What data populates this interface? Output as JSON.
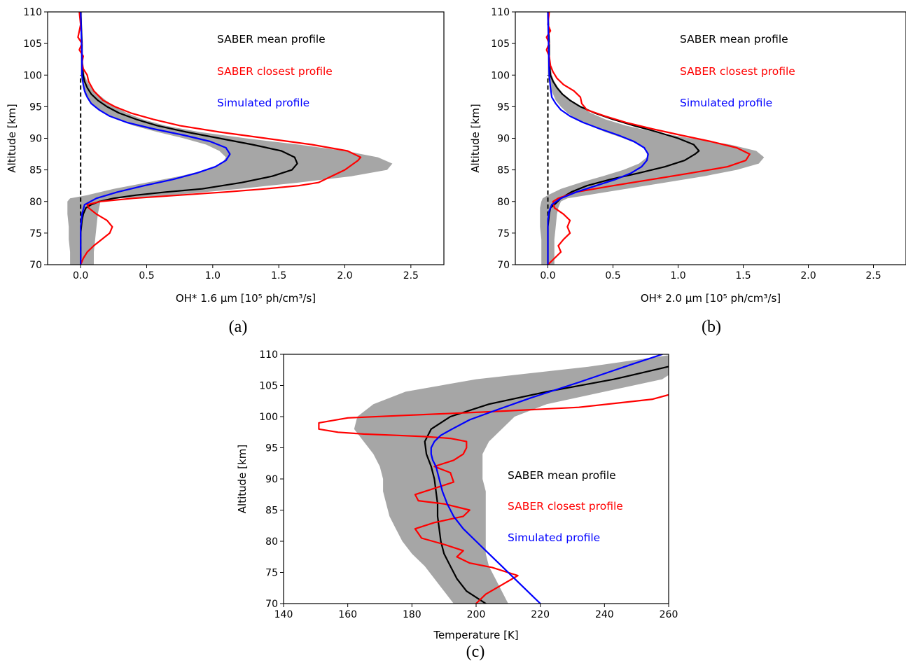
{
  "chart_data": [
    {
      "type": "line",
      "panel_label": "(a)",
      "xlabel": "OH* 1.6 µm [10⁵ ph/cm³/s]",
      "ylabel": "Altitude [km]",
      "xlim": [
        -0.25,
        2.75
      ],
      "ylim": [
        70,
        110
      ],
      "xticks": [
        0.0,
        0.5,
        1.0,
        1.5,
        2.0,
        2.5
      ],
      "xtick_labels": [
        "0.0",
        "0.5",
        "1.0",
        "1.5",
        "2.0",
        "2.5"
      ],
      "yticks": [
        70,
        75,
        80,
        85,
        90,
        95,
        100,
        105,
        110
      ],
      "yticks_labels": [
        "70",
        "75",
        "80",
        "85",
        "90",
        "95",
        "100",
        "105",
        "110"
      ],
      "legend": [
        "SABER mean profile",
        "SABER closest profile",
        "Simulated profile"
      ],
      "zero_line": true,
      "band": {
        "altitude": [
          70,
          72,
          74,
          76,
          78,
          79,
          80,
          80.5,
          81,
          82,
          83,
          84,
          85,
          86,
          87,
          88,
          89,
          90,
          91,
          92,
          93,
          94,
          95,
          96,
          97,
          98,
          99,
          100,
          102,
          104,
          106,
          108,
          110
        ],
        "lower": [
          -0.08,
          -0.08,
          -0.09,
          -0.09,
          -0.1,
          -0.1,
          -0.1,
          -0.08,
          0.05,
          0.25,
          0.5,
          0.75,
          0.95,
          1.07,
          1.1,
          1.05,
          0.95,
          0.78,
          0.58,
          0.4,
          0.27,
          0.17,
          0.1,
          0.06,
          0.03,
          0.02,
          0.01,
          0.0,
          0.0,
          0.0,
          0.0,
          0.0,
          0.0
        ],
        "upper": [
          0.1,
          0.1,
          0.11,
          0.12,
          0.13,
          0.14,
          0.15,
          0.3,
          0.7,
          1.2,
          1.65,
          2.05,
          2.32,
          2.36,
          2.25,
          2.0,
          1.65,
          1.25,
          0.9,
          0.64,
          0.47,
          0.35,
          0.26,
          0.19,
          0.13,
          0.08,
          0.05,
          0.03,
          0.02,
          0.01,
          0.01,
          0.01,
          0.01
        ]
      },
      "series": [
        {
          "name": "SABER mean profile",
          "color": "#000000",
          "x": [
            0.0,
            0.0,
            0.01,
            0.02,
            0.04,
            0.08,
            0.14,
            0.25,
            0.42,
            0.65,
            0.92,
            1.22,
            1.45,
            1.6,
            1.64,
            1.62,
            1.52,
            1.3,
            1.05,
            0.8,
            0.58,
            0.42,
            0.29,
            0.2,
            0.13,
            0.08,
            0.05,
            0.03,
            0.02,
            0.01,
            0.01,
            0.0
          ],
          "y": [
            70,
            75,
            77,
            78,
            79,
            79.5,
            80,
            80.5,
            81,
            81.5,
            82,
            83,
            84,
            85,
            86,
            87,
            88,
            89,
            90,
            91,
            92,
            93,
            94,
            95,
            96,
            97,
            98,
            99,
            100,
            102,
            105,
            110
          ]
        },
        {
          "name": "SABER closest profile",
          "color": "#ff0000",
          "x": [
            0.0,
            0.02,
            0.05,
            0.1,
            0.16,
            0.22,
            0.24,
            0.2,
            0.12,
            0.06,
            0.05,
            0.15,
            0.4,
            0.75,
            1.1,
            1.4,
            1.65,
            1.8,
            2.0,
            2.1,
            2.12,
            2.02,
            1.75,
            1.4,
            1.05,
            0.75,
            0.55,
            0.38,
            0.26,
            0.17,
            0.1,
            0.06,
            0.05,
            0.02,
            0.01,
            0.02,
            -0.01,
            0.01,
            -0.02,
            0.0,
            -0.01
          ],
          "y": [
            70,
            71,
            72,
            73,
            74,
            75,
            76,
            77,
            78,
            79,
            79.5,
            80,
            80.5,
            81,
            81.5,
            82,
            82.5,
            83,
            85,
            86.5,
            87,
            88,
            89,
            90,
            91,
            92,
            93,
            94,
            95,
            96,
            97.5,
            99,
            100,
            101,
            102,
            103,
            104,
            105,
            106,
            108,
            110
          ]
        },
        {
          "name": "Simulated profile",
          "color": "#0000ff",
          "x": [
            0.0,
            0.0,
            0.01,
            0.03,
            0.12,
            0.28,
            0.48,
            0.7,
            0.88,
            1.02,
            1.1,
            1.13,
            1.1,
            0.98,
            0.78,
            0.55,
            0.35,
            0.22,
            0.14,
            0.08,
            0.05,
            0.03,
            0.02,
            0.01,
            0.01,
            0.0
          ],
          "y": [
            70,
            76,
            78,
            79.5,
            80.5,
            81.5,
            82.5,
            83.5,
            84.5,
            85.5,
            86.5,
            87.5,
            88.5,
            89.5,
            90.5,
            91.5,
            92.5,
            93.5,
            94.5,
            95.5,
            96.5,
            97.5,
            98.5,
            100,
            103,
            110
          ]
        }
      ]
    },
    {
      "type": "line",
      "panel_label": "(b)",
      "xlabel": "OH* 2.0 µm [10⁵ ph/cm³/s]",
      "ylabel": "Altitude [km]",
      "xlim": [
        -0.25,
        2.75
      ],
      "ylim": [
        70,
        110
      ],
      "xticks": [
        0.0,
        0.5,
        1.0,
        1.5,
        2.0,
        2.5
      ],
      "xtick_labels": [
        "0.0",
        "0.5",
        "1.0",
        "1.5",
        "2.0",
        "2.5"
      ],
      "yticks": [
        70,
        75,
        80,
        85,
        90,
        95,
        100,
        105,
        110
      ],
      "yticks_labels": [
        "70",
        "75",
        "80",
        "85",
        "90",
        "95",
        "100",
        "105",
        "110"
      ],
      "legend": [
        "SABER mean profile",
        "SABER closest profile",
        "Simulated profile"
      ],
      "zero_line": true,
      "band": {
        "altitude": [
          70,
          72,
          74,
          76,
          78,
          79,
          80,
          80.5,
          81,
          82,
          83,
          84,
          85,
          86,
          87,
          88,
          89,
          90,
          91,
          92,
          93,
          94,
          95,
          96,
          97,
          98,
          99,
          100,
          102,
          104,
          106,
          108,
          110
        ],
        "lower": [
          -0.05,
          -0.05,
          -0.05,
          -0.06,
          -0.06,
          -0.06,
          -0.05,
          -0.04,
          0.0,
          0.1,
          0.25,
          0.42,
          0.58,
          0.7,
          0.76,
          0.76,
          0.7,
          0.58,
          0.44,
          0.32,
          0.22,
          0.15,
          0.1,
          0.06,
          0.04,
          0.02,
          0.01,
          0.0,
          0.0,
          0.0,
          0.0,
          0.0,
          0.0
        ],
        "upper": [
          0.05,
          0.05,
          0.05,
          0.06,
          0.07,
          0.08,
          0.1,
          0.15,
          0.3,
          0.6,
          0.9,
          1.2,
          1.45,
          1.62,
          1.66,
          1.6,
          1.4,
          1.1,
          0.82,
          0.6,
          0.44,
          0.33,
          0.25,
          0.18,
          0.12,
          0.08,
          0.05,
          0.03,
          0.02,
          0.01,
          0.01,
          0.01,
          0.01
        ]
      },
      "series": [
        {
          "name": "SABER mean profile",
          "color": "#000000",
          "x": [
            0.0,
            0.0,
            0.01,
            0.02,
            0.05,
            0.1,
            0.18,
            0.3,
            0.48,
            0.7,
            0.9,
            1.05,
            1.13,
            1.16,
            1.12,
            1.0,
            0.84,
            0.66,
            0.5,
            0.36,
            0.25,
            0.17,
            0.11,
            0.07,
            0.04,
            0.02,
            0.01,
            0.01,
            0.0
          ],
          "y": [
            70,
            76,
            78,
            79,
            79.5,
            80.5,
            81.5,
            82.5,
            83.5,
            84.5,
            85.5,
            86.5,
            87.5,
            88,
            89,
            90,
            91,
            92,
            93,
            94,
            95,
            96,
            97,
            98,
            99,
            100,
            102,
            105,
            110
          ]
        },
        {
          "name": "SABER closest profile",
          "color": "#ff0000",
          "x": [
            0.0,
            0.05,
            0.1,
            0.08,
            0.12,
            0.17,
            0.15,
            0.17,
            0.12,
            0.05,
            0.04,
            0.08,
            0.22,
            0.5,
            0.8,
            1.1,
            1.38,
            1.52,
            1.55,
            1.45,
            1.25,
            1.02,
            0.8,
            0.6,
            0.44,
            0.3,
            0.26,
            0.25,
            0.2,
            0.12,
            0.07,
            0.04,
            0.02,
            0.01,
            -0.01,
            0.01,
            -0.01,
            0.02,
            0.0,
            0.01
          ],
          "y": [
            70,
            71,
            72,
            73,
            74,
            75,
            76,
            77,
            78,
            79,
            80,
            80.5,
            81.5,
            82.5,
            83.5,
            84.5,
            85.5,
            86.5,
            87.5,
            88.5,
            89.5,
            90.5,
            91.5,
            92.5,
            93.5,
            94.5,
            95.5,
            96.5,
            97.5,
            98.5,
            99.5,
            100.5,
            101.5,
            103,
            104,
            105,
            106,
            107,
            108,
            110
          ]
        },
        {
          "name": "Simulated profile",
          "color": "#0000ff",
          "x": [
            0.0,
            0.0,
            0.01,
            0.03,
            0.1,
            0.22,
            0.37,
            0.52,
            0.64,
            0.72,
            0.76,
            0.77,
            0.74,
            0.66,
            0.54,
            0.4,
            0.27,
            0.17,
            0.1,
            0.06,
            0.03,
            0.02,
            0.01,
            0.0
          ],
          "y": [
            70,
            77,
            78.5,
            79.5,
            80.5,
            81.5,
            82.5,
            83.5,
            84.5,
            85.5,
            86.5,
            87.5,
            88.5,
            89.5,
            90.5,
            91.5,
            92.5,
            93.5,
            94.5,
            95.5,
            96.5,
            98,
            100,
            110
          ]
        }
      ]
    },
    {
      "type": "line",
      "panel_label": "(c)",
      "xlabel": "Temperature [K]",
      "ylabel": "Altitude [km]",
      "xlim": [
        140,
        260
      ],
      "ylim": [
        70,
        110
      ],
      "xticks": [
        140,
        160,
        180,
        200,
        220,
        240,
        260
      ],
      "xtick_labels": [
        "140",
        "160",
        "180",
        "200",
        "220",
        "240",
        "260"
      ],
      "yticks": [
        70,
        75,
        80,
        85,
        90,
        95,
        100,
        105,
        110
      ],
      "yticks_labels": [
        "70",
        "75",
        "80",
        "85",
        "90",
        "95",
        "100",
        "105",
        "110"
      ],
      "legend": [
        "SABER mean profile",
        "SABER closest profile",
        "Simulated profile"
      ],
      "zero_line": false,
      "band": {
        "altitude": [
          70,
          72,
          74,
          76,
          78,
          80,
          82,
          84,
          86,
          88,
          90,
          92,
          94,
          96,
          98,
          100,
          102,
          104,
          106,
          108,
          110
        ],
        "lower": [
          193,
          190,
          187,
          184,
          180,
          177,
          175,
          173,
          172,
          171,
          171,
          170,
          168,
          165,
          162,
          163,
          168,
          178,
          200,
          235,
          262
        ],
        "upper": [
          210,
          208,
          206,
          204,
          203,
          203,
          203,
          203,
          203,
          203,
          202,
          202,
          202,
          204,
          208,
          212,
          222,
          240,
          258,
          264,
          264
        ]
      },
      "series": [
        {
          "name": "SABER mean profile",
          "color": "#000000",
          "x": [
            203,
            200,
            197,
            194,
            192,
            190,
            189,
            188.5,
            188,
            188,
            187.5,
            187,
            186,
            184.5,
            184,
            186,
            192,
            204,
            222,
            243,
            264
          ],
          "y": [
            70,
            71,
            72,
            74,
            76,
            78,
            80,
            82,
            84,
            86,
            88,
            90,
            92,
            94,
            96,
            98,
            100,
            102,
            104,
            106,
            108.5
          ]
        },
        {
          "name": "SABER closest profile",
          "color": "#ff0000",
          "x": [
            200,
            203,
            208,
            213,
            205,
            198,
            194,
            196,
            190,
            183,
            181,
            187,
            196,
            198,
            190,
            182,
            181,
            187,
            193,
            192,
            187,
            193,
            196,
            197,
            197,
            192,
            184,
            175,
            165,
            157,
            151,
            151,
            160,
            178,
            205,
            232,
            255,
            260
          ],
          "y": [
            70,
            71.5,
            73,
            74.5,
            75.8,
            76.5,
            77.5,
            78.5,
            79.5,
            80.5,
            82,
            83,
            84,
            85,
            86,
            86.5,
            87.5,
            88.5,
            89.5,
            91,
            92,
            93,
            94,
            95,
            96,
            96.5,
            96.8,
            97,
            97.2,
            97.5,
            98,
            99,
            99.8,
            100.2,
            100.8,
            101.5,
            102.8,
            103.5
          ]
        },
        {
          "name": "Simulated profile",
          "color": "#0000ff",
          "x": [
            220,
            216,
            212,
            208,
            204,
            200,
            196,
            193,
            191,
            189.5,
            188.5,
            187.5,
            186.5,
            186,
            186,
            187,
            189,
            192.5,
            198,
            206,
            217,
            232,
            248,
            258
          ],
          "y": [
            70,
            72,
            74,
            76,
            78,
            80,
            82,
            84,
            86,
            88,
            90,
            92,
            93,
            94,
            95,
            96,
            97,
            98,
            99.5,
            101,
            103,
            105.5,
            108.3,
            110
          ]
        }
      ]
    }
  ]
}
